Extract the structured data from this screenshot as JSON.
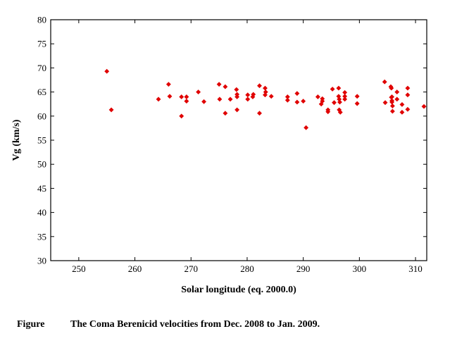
{
  "chart_data": {
    "type": "scatter",
    "title": "",
    "xlabel": "Solar longitude (eq. 2000.0)",
    "ylabel": "Vg (km/s)",
    "xlim": [
      245,
      312
    ],
    "ylim": [
      30,
      80
    ],
    "x_ticks": [
      250,
      260,
      270,
      280,
      290,
      300,
      310
    ],
    "y_ticks": [
      30,
      35,
      40,
      45,
      50,
      55,
      60,
      65,
      70,
      75,
      80
    ],
    "grid": false,
    "legend": "none",
    "marker_color": "#e00000",
    "series": [
      {
        "points": [
          [
            255.0,
            69.3
          ],
          [
            255.8,
            61.3
          ],
          [
            264.2,
            63.5
          ],
          [
            266.0,
            66.6
          ],
          [
            266.2,
            64.1
          ],
          [
            268.3,
            64.0
          ],
          [
            268.3,
            60.0
          ],
          [
            269.2,
            64.0
          ],
          [
            269.2,
            63.1
          ],
          [
            271.3,
            65.0
          ],
          [
            272.3,
            63.0
          ],
          [
            275.0,
            66.6
          ],
          [
            275.1,
            63.5
          ],
          [
            276.1,
            66.1
          ],
          [
            276.1,
            60.6
          ],
          [
            277.0,
            63.5
          ],
          [
            278.1,
            65.5
          ],
          [
            278.2,
            64.5
          ],
          [
            278.2,
            64.0
          ],
          [
            278.2,
            61.3
          ],
          [
            280.1,
            64.4
          ],
          [
            280.1,
            63.5
          ],
          [
            281.0,
            64.0
          ],
          [
            281.1,
            64.5
          ],
          [
            282.2,
            66.3
          ],
          [
            282.2,
            60.6
          ],
          [
            283.2,
            65.8
          ],
          [
            283.3,
            65.0
          ],
          [
            283.2,
            64.4
          ],
          [
            284.3,
            64.1
          ],
          [
            287.2,
            64.0
          ],
          [
            287.2,
            63.3
          ],
          [
            288.9,
            64.7
          ],
          [
            288.9,
            62.9
          ],
          [
            290.0,
            63.1
          ],
          [
            290.5,
            57.6
          ],
          [
            292.6,
            64.0
          ],
          [
            293.4,
            63.6
          ],
          [
            293.2,
            62.5
          ],
          [
            293.4,
            63.1
          ],
          [
            294.4,
            61.3
          ],
          [
            294.4,
            60.9
          ],
          [
            295.2,
            65.6
          ],
          [
            295.5,
            62.8
          ],
          [
            296.3,
            65.8
          ],
          [
            296.3,
            64.1
          ],
          [
            296.4,
            63.5
          ],
          [
            296.5,
            62.9
          ],
          [
            296.4,
            61.3
          ],
          [
            296.6,
            60.8
          ],
          [
            297.4,
            64.9
          ],
          [
            297.4,
            64.1
          ],
          [
            297.4,
            63.5
          ],
          [
            299.6,
            64.1
          ],
          [
            299.6,
            62.6
          ],
          [
            304.5,
            67.1
          ],
          [
            304.6,
            62.8
          ],
          [
            305.6,
            66.1
          ],
          [
            305.7,
            65.8
          ],
          [
            305.7,
            63.9
          ],
          [
            305.8,
            64.0
          ],
          [
            305.8,
            63.2
          ],
          [
            305.8,
            62.9
          ],
          [
            305.9,
            62.1
          ],
          [
            305.9,
            61.0
          ],
          [
            306.7,
            65.0
          ],
          [
            306.7,
            63.5
          ],
          [
            307.6,
            62.4
          ],
          [
            307.6,
            60.8
          ],
          [
            308.6,
            65.8
          ],
          [
            308.6,
            64.4
          ],
          [
            308.6,
            61.4
          ],
          [
            311.5,
            62.0
          ]
        ]
      }
    ]
  },
  "caption": {
    "label": "Figure",
    "text": "The Coma Berenicid velocities from Dec. 2008 to Jan. 2009."
  }
}
